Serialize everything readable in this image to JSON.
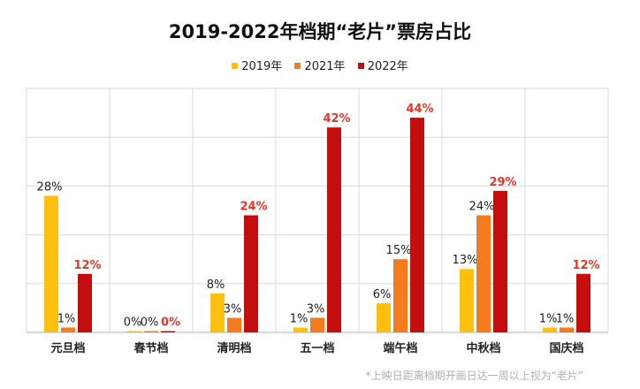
{
  "chart_data": {
    "type": "bar",
    "title": "2019-2022年档期“老片”票房占比",
    "categories": [
      "元旦档",
      "春节档",
      "清明档",
      "五一档",
      "端午档",
      "中秋档",
      "国庆档"
    ],
    "series": [
      {
        "name": "2019年",
        "color": "#fdc00f",
        "values": [
          28,
          0,
          8,
          1,
          6,
          13,
          1
        ],
        "labels": [
          "28%",
          "0%",
          "8%",
          "1%",
          "6%",
          "13%",
          "1%"
        ]
      },
      {
        "name": "2021年",
        "color": "#f47c1f",
        "values": [
          1,
          0,
          3,
          3,
          15,
          24,
          1
        ],
        "labels": [
          "1%",
          "0%",
          "3%",
          "3%",
          "15%",
          "24%",
          "1%"
        ]
      },
      {
        "name": "2022年",
        "color": "#c40e0e",
        "label_color": "#e2372b",
        "values": [
          12,
          0,
          24,
          42,
          44,
          29,
          12
        ],
        "labels": [
          "12%",
          "0%",
          "24%",
          "42%",
          "44%",
          "29%",
          "12%"
        ]
      }
    ],
    "ylim": [
      0,
      50
    ],
    "grid": true,
    "legend": "top-center",
    "footnote": "*上映日距离档期开画日达一周以上视为“老片”"
  }
}
